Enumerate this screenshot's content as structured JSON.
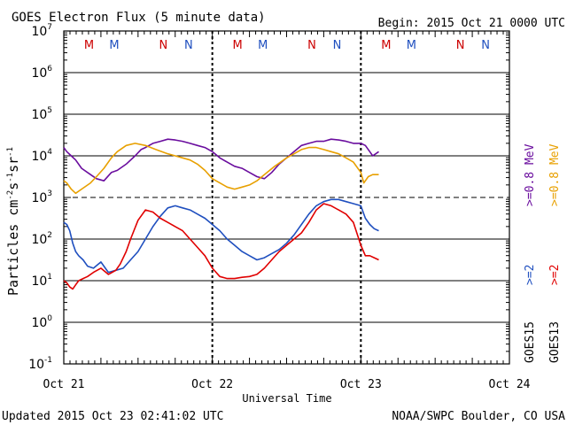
{
  "header": {
    "title": "GOES Electron Flux (5 minute data)",
    "begin": "Begin: 2015 Oct 21 0000 UTC"
  },
  "footer": {
    "updated": "Updated 2015 Oct 23 02:41:02 UTC",
    "credit": "NOAA/SWPC Boulder, CO USA"
  },
  "chart_data": {
    "type": "line",
    "title": "GOES Electron Flux (5 minute data)",
    "xlabel": "Universal Time",
    "ylabel_base": "Particles cm",
    "ylabel_e1": "-2",
    "ylabel_mid": "s",
    "ylabel_e2": "-1",
    "ylabel_mid2": "sr",
    "ylabel_e3": "-1",
    "yscale": "log",
    "ylim_exp": [
      -1,
      7
    ],
    "ytick_exponents": [
      "7",
      "6",
      "5",
      "4",
      "3",
      "2",
      "1",
      "0",
      "-1"
    ],
    "xlim_days": [
      0,
      3
    ],
    "xtick_labels": [
      "Oct 21",
      "Oct 22",
      "Oct 23",
      "Oct 24"
    ],
    "threshold_exp": 3,
    "day_markers": [
      1,
      2
    ],
    "markers": [
      {
        "t": 0.17,
        "label": "M",
        "color": "#cc0000"
      },
      {
        "t": 0.34,
        "label": "M",
        "color": "#1f4fbf"
      },
      {
        "t": 0.67,
        "label": "N",
        "color": "#cc0000"
      },
      {
        "t": 0.84,
        "label": "N",
        "color": "#1f4fbf"
      },
      {
        "t": 1.17,
        "label": "M",
        "color": "#cc0000"
      },
      {
        "t": 1.34,
        "label": "M",
        "color": "#1f4fbf"
      },
      {
        "t": 1.67,
        "label": "N",
        "color": "#cc0000"
      },
      {
        "t": 1.84,
        "label": "N",
        "color": "#1f4fbf"
      },
      {
        "t": 2.17,
        "label": "M",
        "color": "#cc0000"
      },
      {
        "t": 2.34,
        "label": "M",
        "color": "#1f4fbf"
      },
      {
        "t": 2.67,
        "label": "N",
        "color": "#cc0000"
      },
      {
        "t": 2.84,
        "label": "N",
        "color": "#1f4fbf"
      }
    ],
    "legend": {
      "goes15": "GOES15",
      "goes13": "GOES13",
      "p15_low": ">=2",
      "p15_high": ">=0.8 MeV",
      "p13_low": ">=2",
      "p13_high": ">=0.8 MeV"
    },
    "series": [
      {
        "name": "GOES15 >=0.8 MeV",
        "color": "#6a0d9e",
        "t": [
          0.0,
          0.02,
          0.05,
          0.08,
          0.12,
          0.18,
          0.22,
          0.27,
          0.32,
          0.36,
          0.42,
          0.48,
          0.52,
          0.55,
          0.6,
          0.65,
          0.7,
          0.75,
          0.8,
          0.85,
          0.9,
          0.95,
          1.0,
          1.05,
          1.1,
          1.15,
          1.2,
          1.25,
          1.3,
          1.35,
          1.4,
          1.45,
          1.5,
          1.55,
          1.6,
          1.65,
          1.7,
          1.75,
          1.8,
          1.85,
          1.9,
          1.95,
          2.0,
          2.03,
          2.06,
          2.08,
          2.1,
          2.12
        ],
        "log10": [
          4.2,
          4.1,
          4.0,
          3.9,
          3.7,
          3.55,
          3.45,
          3.4,
          3.6,
          3.65,
          3.8,
          4.0,
          4.15,
          4.2,
          4.3,
          4.35,
          4.4,
          4.38,
          4.35,
          4.3,
          4.25,
          4.2,
          4.1,
          3.95,
          3.85,
          3.75,
          3.7,
          3.6,
          3.5,
          3.45,
          3.6,
          3.8,
          3.95,
          4.1,
          4.25,
          4.3,
          4.35,
          4.35,
          4.4,
          4.38,
          4.35,
          4.3,
          4.3,
          4.25,
          4.1,
          4.0,
          4.05,
          4.1
        ]
      },
      {
        "name": "GOES13 >=0.8 MeV",
        "color": "#e8a000",
        "t": [
          0.0,
          0.02,
          0.05,
          0.08,
          0.12,
          0.18,
          0.22,
          0.27,
          0.32,
          0.36,
          0.42,
          0.48,
          0.55,
          0.62,
          0.7,
          0.75,
          0.8,
          0.85,
          0.9,
          0.95,
          1.0,
          1.05,
          1.1,
          1.15,
          1.2,
          1.25,
          1.3,
          1.35,
          1.42,
          1.5,
          1.55,
          1.6,
          1.65,
          1.7,
          1.75,
          1.8,
          1.85,
          1.9,
          1.95,
          2.0,
          2.02,
          2.05,
          2.08,
          2.1,
          2.12
        ],
        "log10": [
          3.4,
          3.35,
          3.2,
          3.1,
          3.2,
          3.35,
          3.5,
          3.7,
          3.95,
          4.1,
          4.25,
          4.3,
          4.25,
          4.15,
          4.05,
          4.0,
          3.95,
          3.9,
          3.8,
          3.65,
          3.45,
          3.35,
          3.25,
          3.2,
          3.25,
          3.3,
          3.4,
          3.55,
          3.75,
          3.95,
          4.05,
          4.15,
          4.2,
          4.2,
          4.15,
          4.1,
          4.05,
          3.95,
          3.85,
          3.6,
          3.35,
          3.5,
          3.55,
          3.55,
          3.55
        ]
      },
      {
        "name": "GOES15 >=2 MeV",
        "color": "#1f4fbf",
        "t": [
          0.0,
          0.02,
          0.04,
          0.06,
          0.08,
          0.1,
          0.13,
          0.16,
          0.2,
          0.25,
          0.3,
          0.35,
          0.4,
          0.45,
          0.5,
          0.55,
          0.6,
          0.65,
          0.7,
          0.75,
          0.8,
          0.85,
          0.9,
          0.95,
          1.0,
          1.05,
          1.1,
          1.15,
          1.2,
          1.25,
          1.3,
          1.35,
          1.4,
          1.45,
          1.5,
          1.55,
          1.6,
          1.65,
          1.7,
          1.75,
          1.8,
          1.85,
          1.9,
          1.95,
          2.0,
          2.03,
          2.06,
          2.09,
          2.12
        ],
        "log10": [
          2.4,
          2.35,
          2.2,
          1.9,
          1.7,
          1.6,
          1.5,
          1.35,
          1.3,
          1.45,
          1.2,
          1.25,
          1.3,
          1.5,
          1.7,
          2.0,
          2.3,
          2.55,
          2.75,
          2.8,
          2.75,
          2.7,
          2.6,
          2.5,
          2.35,
          2.2,
          2.0,
          1.85,
          1.7,
          1.6,
          1.5,
          1.55,
          1.65,
          1.75,
          1.9,
          2.1,
          2.35,
          2.6,
          2.8,
          2.9,
          2.95,
          2.95,
          2.9,
          2.85,
          2.8,
          2.5,
          2.35,
          2.25,
          2.2
        ]
      },
      {
        "name": "GOES13 >=2 MeV",
        "color": "#e00000",
        "t": [
          0.0,
          0.02,
          0.04,
          0.06,
          0.08,
          0.1,
          0.13,
          0.16,
          0.2,
          0.25,
          0.3,
          0.35,
          0.38,
          0.42,
          0.45,
          0.5,
          0.55,
          0.6,
          0.65,
          0.7,
          0.75,
          0.8,
          0.85,
          0.9,
          0.95,
          1.0,
          1.05,
          1.1,
          1.15,
          1.2,
          1.25,
          1.3,
          1.35,
          1.4,
          1.45,
          1.5,
          1.55,
          1.6,
          1.65,
          1.7,
          1.75,
          1.8,
          1.85,
          1.9,
          1.95,
          2.0,
          2.03,
          2.06,
          2.09,
          2.12
        ],
        "log10": [
          1.0,
          0.95,
          0.85,
          0.8,
          0.9,
          1.0,
          1.05,
          1.1,
          1.2,
          1.3,
          1.15,
          1.25,
          1.4,
          1.7,
          2.0,
          2.45,
          2.7,
          2.65,
          2.5,
          2.4,
          2.3,
          2.2,
          2.0,
          1.8,
          1.6,
          1.3,
          1.1,
          1.05,
          1.05,
          1.08,
          1.1,
          1.15,
          1.3,
          1.5,
          1.7,
          1.85,
          2.0,
          2.15,
          2.4,
          2.7,
          2.85,
          2.8,
          2.7,
          2.6,
          2.4,
          1.85,
          1.6,
          1.6,
          1.55,
          1.5
        ]
      }
    ]
  }
}
